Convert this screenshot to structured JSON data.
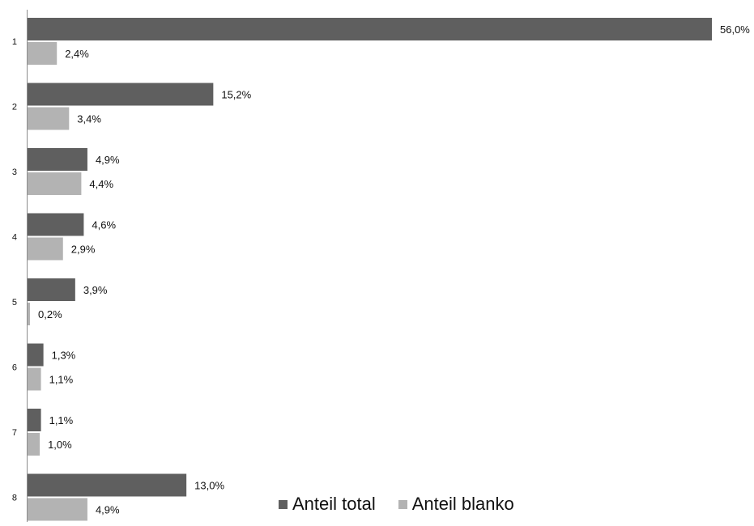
{
  "chart_data": {
    "type": "bar",
    "orientation": "horizontal",
    "categories": [
      "1",
      "2",
      "3",
      "4",
      "5",
      "6",
      "7",
      "8"
    ],
    "series": [
      {
        "name": "Anteil total",
        "color": "#5f5f5f",
        "values": [
          56.0,
          15.2,
          4.9,
          4.6,
          3.9,
          1.3,
          1.1,
          13.0
        ],
        "labels": [
          "56,0%",
          "15,2%",
          "4,9%",
          "4,6%",
          "3,9%",
          "1,3%",
          "1,1%",
          "13,0%"
        ]
      },
      {
        "name": "Anteil blanko",
        "color": "#b3b3b3",
        "values": [
          2.4,
          3.4,
          4.4,
          2.9,
          0.2,
          1.1,
          1.0,
          4.9
        ],
        "labels": [
          "2,4%",
          "3,4%",
          "4,4%",
          "2,9%",
          "0,2%",
          "1,1%",
          "1,0%",
          "4,9%"
        ]
      }
    ],
    "xlim": [
      0,
      56
    ],
    "grid": false,
    "legend": "bottom-right",
    "title": "",
    "xlabel": "",
    "ylabel": ""
  }
}
